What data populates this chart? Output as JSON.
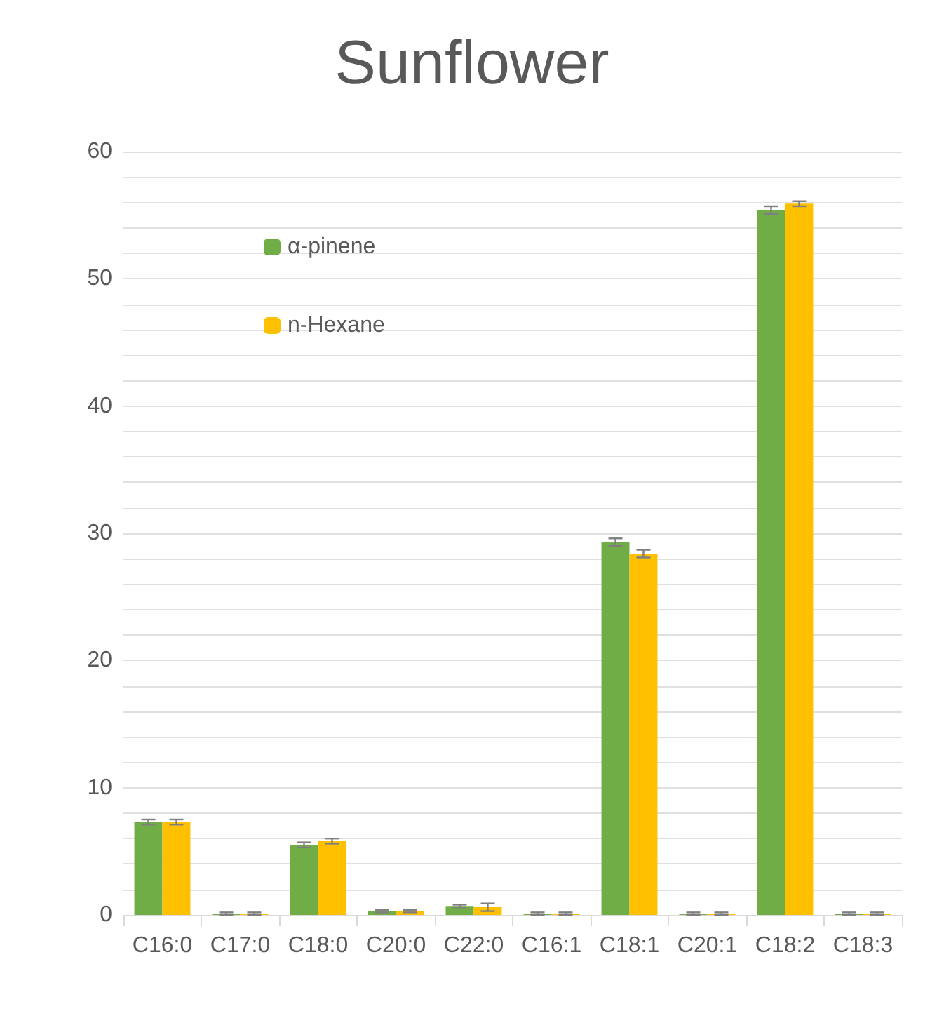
{
  "chart_data": {
    "type": "bar",
    "title": "Sunflower",
    "categories": [
      "C16:0",
      "C17:0",
      "C18:0",
      "C20:0",
      "C22:0",
      "C16:1",
      "C18:1",
      "C20:1",
      "C18:2",
      "C18:3"
    ],
    "series": [
      {
        "name": "α-pinene",
        "color": "#70ad47",
        "values": [
          7.3,
          0.1,
          5.5,
          0.3,
          0.7,
          0.1,
          29.3,
          0.1,
          55.4,
          0.1
        ],
        "errors": [
          0.2,
          0.1,
          0.2,
          0.1,
          0.1,
          0.1,
          0.3,
          0.1,
          0.3,
          0.1
        ]
      },
      {
        "name": "n-Hexane",
        "color": "#ffc000",
        "values": [
          7.3,
          0.1,
          5.8,
          0.3,
          0.6,
          0.1,
          28.4,
          0.1,
          55.9,
          0.1
        ],
        "errors": [
          0.2,
          0.1,
          0.2,
          0.1,
          0.3,
          0.1,
          0.3,
          0.1,
          0.2,
          0.1
        ]
      }
    ],
    "ylim": [
      0,
      60
    ],
    "yticks": [
      0,
      {
        "value": 2,
        "label": null
      },
      {
        "value": 4,
        "label": null
      },
      {
        "value": 6,
        "label": null
      },
      {
        "value": 8,
        "label": null
      },
      10,
      {
        "value": 12,
        "label": null
      },
      {
        "value": 14,
        "label": null
      },
      {
        "value": 16,
        "label": null
      },
      {
        "value": 18,
        "label": null
      },
      20,
      {
        "value": 22,
        "label": null
      },
      {
        "value": 24,
        "label": null
      },
      {
        "value": 26,
        "label": null
      },
      {
        "value": 28,
        "label": null
      },
      30,
      {
        "value": 32,
        "label": null
      },
      {
        "value": 34,
        "label": null
      },
      {
        "value": 36,
        "label": null
      },
      {
        "value": 38,
        "label": null
      },
      40,
      {
        "value": 42,
        "label": null
      },
      {
        "value": 44,
        "label": null
      },
      {
        "value": 46,
        "label": null
      },
      {
        "value": 48,
        "label": null
      },
      50,
      {
        "value": 52,
        "label": null
      },
      {
        "value": 54,
        "label": null
      },
      {
        "value": 56,
        "label": null
      },
      {
        "value": 58,
        "label": null
      },
      60
    ],
    "grid": "y",
    "legend": "top left"
  }
}
